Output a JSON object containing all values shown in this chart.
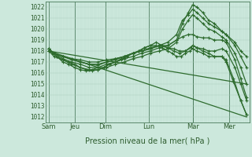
{
  "bg_color": "#cce8dc",
  "grid_major_color": "#aaccbb",
  "grid_minor_color": "#bbddd0",
  "line_color": "#2d6b2d",
  "ylim": [
    1011.5,
    1022.5
  ],
  "xlim": [
    0,
    7.0
  ],
  "xlabel": "Pression niveau de la mer( hPa )",
  "day_labels": [
    "Sam",
    "Jeu",
    "Dim",
    "Lun",
    "Mar",
    "Mer"
  ],
  "day_positions": [
    0.12,
    1.0,
    2.05,
    3.55,
    5.05,
    6.3
  ],
  "ylabel_ticks": [
    1012,
    1013,
    1014,
    1015,
    1016,
    1017,
    1018,
    1019,
    1020,
    1021,
    1022
  ],
  "series": [
    {
      "x": [
        0.12,
        6.9
      ],
      "y": [
        1018.0,
        1015.0
      ],
      "style": "line",
      "lw": 0.9
    },
    {
      "x": [
        0.12,
        6.9
      ],
      "y": [
        1018.0,
        1012.0
      ],
      "style": "line",
      "lw": 0.9
    },
    {
      "x": [
        0.12,
        0.3,
        0.6,
        0.9,
        1.2,
        1.5,
        1.8,
        2.1,
        2.4,
        2.7,
        3.0,
        3.3,
        3.6,
        3.9,
        4.2,
        4.5,
        4.7,
        4.9,
        5.05,
        5.2,
        5.4,
        5.6,
        5.8,
        6.05,
        6.2,
        6.5,
        6.7,
        6.9
      ],
      "y": [
        1018.2,
        1017.8,
        1017.3,
        1017.0,
        1016.8,
        1016.5,
        1016.5,
        1016.8,
        1017.0,
        1017.3,
        1017.5,
        1017.8,
        1018.0,
        1018.3,
        1018.5,
        1019.0,
        1020.5,
        1021.5,
        1022.2,
        1022.0,
        1021.5,
        1020.8,
        1020.5,
        1019.8,
        1019.5,
        1018.8,
        1018.0,
        1017.5
      ],
      "style": "line_dot",
      "lw": 0.9
    },
    {
      "x": [
        0.12,
        0.3,
        0.6,
        0.9,
        1.2,
        1.5,
        1.8,
        2.1,
        2.4,
        2.7,
        3.0,
        3.3,
        3.6,
        3.9,
        4.2,
        4.5,
        4.7,
        4.9,
        5.05,
        5.2,
        5.4,
        5.6,
        5.8,
        6.05,
        6.2,
        6.5,
        6.7,
        6.9
      ],
      "y": [
        1018.2,
        1017.8,
        1017.5,
        1017.2,
        1017.0,
        1016.8,
        1016.7,
        1017.0,
        1017.3,
        1017.5,
        1017.8,
        1018.0,
        1018.2,
        1018.5,
        1018.8,
        1019.5,
        1020.8,
        1021.3,
        1021.8,
        1021.5,
        1021.0,
        1020.5,
        1020.2,
        1019.8,
        1019.5,
        1018.5,
        1017.5,
        1016.5
      ],
      "style": "line_dot",
      "lw": 0.9
    },
    {
      "x": [
        0.12,
        0.3,
        0.6,
        0.9,
        1.2,
        1.5,
        1.8,
        2.1,
        2.4,
        2.7,
        3.0,
        3.3,
        3.6,
        3.9,
        4.2,
        4.5,
        4.7,
        4.9,
        5.05,
        5.2,
        5.4,
        5.6,
        5.8,
        6.05,
        6.2,
        6.5,
        6.7,
        6.9
      ],
      "y": [
        1018.0,
        1017.5,
        1017.2,
        1016.8,
        1016.5,
        1016.3,
        1016.3,
        1016.5,
        1016.8,
        1017.0,
        1017.3,
        1017.5,
        1017.8,
        1018.0,
        1018.2,
        1018.8,
        1020.0,
        1020.8,
        1021.3,
        1021.0,
        1020.5,
        1020.0,
        1019.8,
        1019.3,
        1019.0,
        1017.8,
        1016.5,
        1015.0
      ],
      "style": "line_dot",
      "lw": 0.9
    },
    {
      "x": [
        0.12,
        0.3,
        0.6,
        0.9,
        1.2,
        1.5,
        1.8,
        2.1,
        2.4,
        2.7,
        3.0,
        3.3,
        3.6,
        3.9,
        4.2,
        4.4,
        4.6,
        4.8,
        5.05,
        5.2,
        5.4,
        5.6,
        5.8,
        6.05,
        6.2,
        6.5,
        6.7,
        6.9
      ],
      "y": [
        1018.0,
        1017.8,
        1017.5,
        1017.3,
        1017.2,
        1017.0,
        1017.0,
        1017.2,
        1017.3,
        1017.5,
        1017.8,
        1018.0,
        1018.3,
        1018.5,
        1018.3,
        1018.2,
        1018.0,
        1018.0,
        1018.5,
        1018.3,
        1018.2,
        1018.0,
        1018.0,
        1018.2,
        1018.0,
        1016.5,
        1015.0,
        1013.5
      ],
      "style": "line_dot",
      "lw": 0.9
    },
    {
      "x": [
        0.12,
        0.3,
        0.6,
        0.9,
        1.2,
        1.5,
        1.8,
        2.1,
        2.4,
        2.7,
        3.0,
        3.3,
        3.6,
        3.9,
        4.2,
        4.5,
        4.7,
        4.9,
        5.05,
        5.2,
        5.4,
        5.6,
        5.8,
        6.05,
        6.2,
        6.5,
        6.7,
        6.9
      ],
      "y": [
        1018.0,
        1017.8,
        1017.5,
        1017.3,
        1017.0,
        1016.8,
        1016.8,
        1017.0,
        1017.2,
        1017.5,
        1017.8,
        1018.0,
        1018.2,
        1018.5,
        1018.5,
        1019.0,
        1019.3,
        1019.5,
        1019.5,
        1019.3,
        1019.2,
        1019.2,
        1019.0,
        1019.0,
        1018.8,
        1017.2,
        1015.5,
        1013.8
      ],
      "style": "line_dot",
      "lw": 0.9
    },
    {
      "x": [
        0.12,
        0.25,
        0.4,
        0.6,
        0.8,
        1.0,
        1.2,
        1.4,
        1.6,
        1.8,
        2.0,
        2.2,
        2.4,
        2.6,
        2.8,
        3.0,
        3.2,
        3.4,
        3.6,
        3.8,
        4.0,
        4.2,
        4.35,
        4.5,
        4.65,
        4.8,
        4.95,
        5.05,
        5.2,
        5.4,
        5.6,
        5.8,
        6.05,
        6.2,
        6.45,
        6.7,
        6.9
      ],
      "y": [
        1018.2,
        1017.8,
        1017.5,
        1017.2,
        1017.0,
        1016.8,
        1016.5,
        1016.3,
        1016.3,
        1016.5,
        1016.5,
        1016.8,
        1017.0,
        1017.3,
        1017.5,
        1017.8,
        1018.0,
        1018.3,
        1018.5,
        1018.5,
        1018.3,
        1018.0,
        1017.8,
        1017.5,
        1017.5,
        1017.8,
        1018.0,
        1018.2,
        1018.0,
        1017.8,
        1017.5,
        1017.5,
        1017.5,
        1017.2,
        1015.5,
        1013.5,
        1012.2
      ],
      "style": "line_dot",
      "lw": 0.9
    },
    {
      "x": [
        0.12,
        0.25,
        0.4,
        0.6,
        0.8,
        1.0,
        1.2,
        1.4,
        1.6,
        1.8,
        2.0,
        2.2,
        2.4,
        2.6,
        2.8,
        3.0,
        3.2,
        3.4,
        3.6,
        3.8,
        4.0,
        4.2,
        4.4,
        4.6,
        4.8,
        5.0,
        5.05,
        5.2,
        5.4,
        5.6,
        5.8,
        6.05,
        6.2,
        6.45,
        6.7,
        6.9
      ],
      "y": [
        1018.2,
        1017.8,
        1017.5,
        1017.0,
        1016.8,
        1016.5,
        1016.3,
        1016.2,
        1016.2,
        1016.3,
        1016.5,
        1016.8,
        1017.0,
        1017.2,
        1017.5,
        1017.8,
        1018.0,
        1018.3,
        1018.5,
        1018.8,
        1018.5,
        1018.3,
        1018.0,
        1017.8,
        1018.0,
        1018.3,
        1018.5,
        1018.3,
        1018.0,
        1017.8,
        1017.5,
        1017.5,
        1017.0,
        1015.2,
        1013.5,
        1012.2
      ],
      "style": "line_dot",
      "lw": 0.9
    }
  ]
}
